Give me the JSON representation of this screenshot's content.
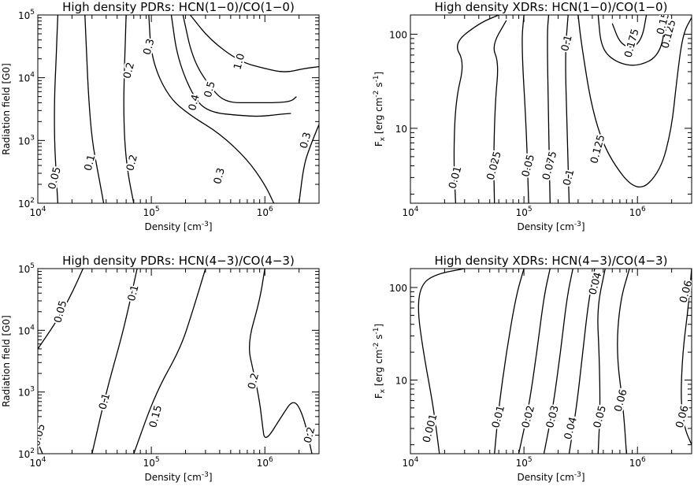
{
  "chart_data": [
    {
      "type": "contour",
      "title": "High density PDRs: HCN(1-0)/CO(1-0)",
      "xlabel": "Density [cm^-3]",
      "ylabel": "Radiation field [G0]",
      "xscale": "log",
      "yscale": "log",
      "xlim": [
        10000,
        3000000
      ],
      "ylim": [
        100,
        100000
      ],
      "xticks": [
        "10^4",
        "10^5",
        "10^6"
      ],
      "yticks": [
        "10^2",
        "10^3",
        "10^4",
        "10^5"
      ],
      "contours": [
        {
          "level": "0.05",
          "points": [
            [
              15000,
              100
            ],
            [
              14500,
              300
            ],
            [
              14000,
              1000
            ],
            [
              14000,
              5000
            ],
            [
              14500,
              20000
            ],
            [
              15000,
              100000
            ]
          ],
          "labels": [
            [
              14200,
              250
            ]
          ]
        },
        {
          "level": "0.1",
          "points": [
            [
              38000,
              100
            ],
            [
              34000,
              300
            ],
            [
              30000,
              1000
            ],
            [
              28000,
              5000
            ],
            [
              27000,
              20000
            ],
            [
              26000,
              100000
            ]
          ],
          "labels": [
            [
              29000,
              440
            ]
          ]
        },
        {
          "level": "0.2",
          "points": [
            [
              70000,
              100
            ],
            [
              62000,
              300
            ],
            [
              58000,
              1000
            ],
            [
              57000,
              4000
            ],
            [
              58000,
              15000
            ],
            [
              60000,
              100000
            ]
          ],
          "labels": [
            [
              68000,
              440
            ],
            [
              64000,
              13000
            ]
          ]
        },
        {
          "level": "0.3",
          "points": [
            [
              95000,
              100000
            ],
            [
              100000,
              20000
            ],
            [
              140000,
              5000
            ],
            [
              220000,
              2500
            ],
            [
              400000,
              1300
            ],
            [
              700000,
              500
            ],
            [
              1000000,
              200
            ],
            [
              1200000,
              100
            ]
          ],
          "labels": [
            [
              400000,
              270
            ],
            [
              96000,
              31000
            ]
          ]
        },
        {
          "level": "0.4",
          "points": [
            [
              150000,
              100000
            ],
            [
              170000,
              20000
            ],
            [
              240000,
              4500
            ],
            [
              330000,
              2800
            ],
            [
              600000,
              2500
            ],
            [
              900000,
              2400
            ],
            [
              1300000,
              2600
            ],
            [
              1700000,
              2700
            ]
          ],
          "labels": [
            [
              240000,
              4000
            ]
          ]
        },
        {
          "level": "0.5",
          "points": [
            [
              190000,
              100000
            ],
            [
              230000,
              20000
            ],
            [
              330000,
              7000
            ],
            [
              450000,
              4000
            ],
            [
              800000,
              4000
            ],
            [
              1300000,
              4000
            ],
            [
              1700000,
              4200
            ],
            [
              1900000,
              5000
            ]
          ],
          "labels": [
            [
              330000,
              6500
            ]
          ]
        },
        {
          "level": "1.0",
          "points": [
            [
              220000,
              100000
            ],
            [
              330000,
              40000
            ],
            [
              600000,
              18000
            ],
            [
              1000000,
              14000
            ],
            [
              1500000,
              12000
            ],
            [
              2200000,
              14000
            ],
            [
              3000000,
              15000
            ]
          ],
          "labels": [
            [
              600000,
              18000
            ]
          ]
        },
        {
          "level": "0.3",
          "points": [
            [
              3000000,
              1800
            ],
            [
              2500000,
              800
            ],
            [
              2200000,
              400
            ],
            [
              2000000,
              100
            ]
          ],
          "labels": [
            [
              2300000,
              1000
            ]
          ]
        }
      ]
    },
    {
      "type": "contour",
      "title": "High density XDRs: HCN(1-0)/CO(1-0)",
      "xlabel": "Density [cm^-3]",
      "ylabel": "F_x [erg cm^-2 s^-1]",
      "xscale": "log",
      "yscale": "log",
      "xlim": [
        10000,
        3000000
      ],
      "ylim": [
        1.6,
        160
      ],
      "xticks": [
        "10^4",
        "10^5",
        "10^6"
      ],
      "yticks": [
        "10",
        "100"
      ],
      "contours": [
        {
          "level": "0.01",
          "points": [
            [
              25000,
              1.6
            ],
            [
              24000,
              5
            ],
            [
              25000,
              20
            ],
            [
              30000,
              50
            ],
            [
              24000,
              80
            ],
            [
              40000,
              130
            ],
            [
              60000,
              160
            ]
          ],
          "labels": [
            [
              25000,
              3
            ]
          ]
        },
        {
          "level": "0.025",
          "points": [
            [
              55000,
              1.6
            ],
            [
              54000,
              5
            ],
            [
              56000,
              20
            ],
            [
              60000,
              50
            ],
            [
              52000,
              75
            ],
            [
              70000,
              140
            ]
          ],
          "labels": [
            [
              55000,
              4
            ]
          ]
        },
        {
          "level": "0.05",
          "points": [
            [
              110000,
              1.6
            ],
            [
              105000,
              10
            ],
            [
              95000,
              80
            ],
            [
              100000,
              160
            ]
          ],
          "labels": [
            [
              110000,
              4
            ]
          ]
        },
        {
          "level": "0.075",
          "points": [
            [
              170000,
              1.6
            ],
            [
              165000,
              10
            ],
            [
              160000,
              100
            ],
            [
              165000,
              160
            ]
          ],
          "labels": [
            [
              170000,
              4
            ]
          ]
        },
        {
          "level": "0.1",
          "points": [
            [
              250000,
              1.6
            ],
            [
              240000,
              10
            ],
            [
              230000,
              60
            ],
            [
              245000,
              160
            ]
          ],
          "labels": [
            [
              250000,
              3
            ],
            [
              240000,
              80
            ]
          ]
        },
        {
          "level": "0.125",
          "points": [
            [
              300000,
              160
            ],
            [
              320000,
              80
            ],
            [
              400000,
              15
            ],
            [
              550000,
              5
            ],
            [
              1000000,
              2
            ],
            [
              1600000,
              3.5
            ],
            [
              2000000,
              10
            ],
            [
              2200000,
              30
            ],
            [
              2500000,
              100
            ],
            [
              3000000,
              150
            ]
          ],
          "labels": [
            [
              450000,
              6
            ],
            [
              1900000,
              100
            ]
          ]
        },
        {
          "level": "0.15",
          "points": [
            [
              450000,
              160
            ],
            [
              480000,
              70
            ],
            [
              650000,
              50
            ],
            [
              1000000,
              45
            ],
            [
              1600000,
              60
            ],
            [
              1800000,
              160
            ]
          ],
          "labels": [
            [
              1700000,
              130
            ]
          ]
        },
        {
          "level": "0.175",
          "points": [
            [
              600000,
              130
            ],
            [
              700000,
              80
            ],
            [
              900000,
              70
            ],
            [
              1100000,
              90
            ],
            [
              1200000,
              160
            ]
          ],
          "labels": [
            [
              900000,
              80
            ]
          ]
        }
      ]
    },
    {
      "type": "contour",
      "title": "High density PDRs: HCN(4-3)/CO(4-3)",
      "xlabel": "Density [cm^-3]",
      "ylabel": "Radiation field [G0]",
      "xscale": "log",
      "yscale": "log",
      "xlim": [
        10000,
        3000000
      ],
      "ylim": [
        100,
        100000
      ],
      "xticks": [
        "10^4",
        "10^5",
        "10^6"
      ],
      "yticks": [
        "10^2",
        "10^3",
        "10^4",
        "10^5"
      ],
      "contours": [
        {
          "level": "0.05",
          "points": [
            [
              10000,
              5000
            ],
            [
              15000,
              15000
            ],
            [
              20000,
              40000
            ],
            [
              25000,
              100000
            ]
          ],
          "labels": [
            [
              16000,
              20000
            ]
          ]
        },
        {
          "level": "0.05",
          "points": [
            [
              10000,
              150
            ],
            [
              11000,
              100
            ]
          ],
          "labels": [
            [
              10300,
              200
            ]
          ]
        },
        {
          "level": "0.1",
          "points": [
            [
              30000,
              100
            ],
            [
              40000,
              1000
            ],
            [
              55000,
              8000
            ],
            [
              65000,
              30000
            ],
            [
              75000,
              100000
            ]
          ],
          "labels": [
            [
              39000,
              700
            ],
            [
              70000,
              40000
            ]
          ]
        },
        {
          "level": "0.15",
          "points": [
            [
              70000,
              100
            ],
            [
              110000,
              1000
            ],
            [
              180000,
              5000
            ],
            [
              230000,
              20000
            ],
            [
              300000,
              100000
            ]
          ],
          "labels": [
            [
              110000,
              400
            ]
          ]
        },
        {
          "level": "0.2",
          "points": [
            [
              1000000,
              100000
            ],
            [
              900000,
              30000
            ],
            [
              700000,
              6000
            ],
            [
              800000,
              2000
            ],
            [
              900000,
              700
            ],
            [
              950000,
              300
            ],
            [
              1000000,
              150
            ],
            [
              1400000,
              400
            ],
            [
              1800000,
              800
            ],
            [
              2200000,
              400
            ],
            [
              2600000,
              100
            ]
          ],
          "labels": [
            [
              800000,
              1500
            ],
            [
              2500000,
              200
            ]
          ]
        }
      ]
    },
    {
      "type": "contour",
      "title": "High density XDRs: HCN(4-3)/CO(4-3)",
      "xlabel": "Density [cm^-3]",
      "ylabel": "F_x [erg cm^-2 s^-1]",
      "xscale": "log",
      "yscale": "log",
      "xlim": [
        10000,
        3000000
      ],
      "ylim": [
        1.6,
        160
      ],
      "xticks": [
        "10^4",
        "10^5",
        "10^6"
      ],
      "yticks": [
        "10",
        "100"
      ],
      "contours": [
        {
          "level": "0.001",
          "points": [
            [
              18000,
              1.6
            ],
            [
              16000,
              5
            ],
            [
              13000,
              20
            ],
            [
              11500,
              60
            ],
            [
              12500,
              110
            ],
            [
              17000,
              140
            ],
            [
              30000,
              160
            ]
          ],
          "labels": [
            [
              15000,
              3
            ]
          ]
        },
        {
          "level": "0.01",
          "points": [
            [
              55000,
              1.6
            ],
            [
              60000,
              5
            ],
            [
              70000,
              20
            ],
            [
              85000,
              80
            ],
            [
              100000,
              160
            ]
          ],
          "labels": [
            [
              60000,
              4
            ]
          ]
        },
        {
          "level": "0.02",
          "points": [
            [
              90000,
              1.6
            ],
            [
              110000,
              5
            ],
            [
              130000,
              20
            ],
            [
              150000,
              80
            ],
            [
              170000,
              160
            ]
          ],
          "labels": [
            [
              110000,
              4
            ]
          ]
        },
        {
          "level": "0.03",
          "points": [
            [
              150000,
              1.6
            ],
            [
              180000,
              5
            ],
            [
              210000,
              20
            ],
            [
              240000,
              80
            ],
            [
              270000,
              160
            ]
          ],
          "labels": [
            [
              180000,
              4
            ]
          ]
        },
        {
          "level": "0.04",
          "points": [
            [
              250000,
              1.6
            ],
            [
              290000,
              5
            ],
            [
              330000,
              20
            ],
            [
              370000,
              70
            ],
            [
              420000,
              160
            ]
          ],
          "labels": [
            [
              260000,
              3
            ],
            [
              430000,
              110
            ]
          ]
        },
        {
          "level": "0.05",
          "points": [
            [
              450000,
              1.6
            ],
            [
              470000,
              5
            ],
            [
              460000,
              20
            ],
            [
              440000,
              60
            ],
            [
              520000,
              160
            ]
          ],
          "labels": [
            [
              470000,
              4
            ]
          ]
        },
        {
          "level": "0.06",
          "points": [
            [
              800000,
              1.6
            ],
            [
              750000,
              5
            ],
            [
              650000,
              20
            ],
            [
              700000,
              70
            ],
            [
              850000,
              160
            ]
          ],
          "labels": [
            [
              720000,
              6
            ]
          ]
        },
        {
          "level": "0.06",
          "points": [
            [
              3000000,
              160
            ],
            [
              2800000,
              60
            ],
            [
              2500000,
              20
            ],
            [
              2400000,
              6
            ],
            [
              2600000,
              3
            ],
            [
              3000000,
              2
            ]
          ],
          "labels": [
            [
              2700000,
              90
            ],
            [
              2500000,
              4
            ]
          ]
        }
      ]
    }
  ]
}
